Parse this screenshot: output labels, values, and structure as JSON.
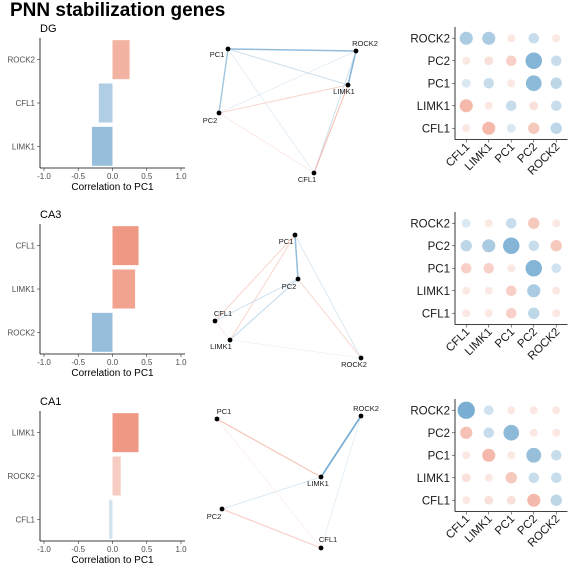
{
  "title": "PNN stabilization genes",
  "colors": {
    "positive": "#e8694a",
    "negative": "#4a90c2"
  },
  "chart_data": [
    {
      "type": "bar",
      "orientation": "horizontal",
      "panel": "DG",
      "categories": [
        "LIMK1",
        "CFL1",
        "ROCK2"
      ],
      "values": [
        -0.3,
        -0.2,
        0.25
      ],
      "xlabel": "Correlation to PC1",
      "xlim": [
        -1.0,
        1.0
      ],
      "xticks": [
        "-1.0",
        "-0.5",
        "0.0",
        "0.5",
        "1.0"
      ]
    },
    {
      "type": "network",
      "panel": "DG",
      "nodes": [
        "PC1",
        "ROCK2",
        "LIMK1",
        "CFL1",
        "PC2"
      ],
      "edges": [
        {
          "a": "PC1",
          "b": "PC2",
          "r": -0.4
        },
        {
          "a": "PC1",
          "b": "ROCK2",
          "r": -0.45
        },
        {
          "a": "PC1",
          "b": "LIMK1",
          "r": -0.2
        },
        {
          "a": "PC1",
          "b": "CFL1",
          "r": -0.1
        },
        {
          "a": "PC2",
          "b": "LIMK1",
          "r": 0.2
        },
        {
          "a": "PC2",
          "b": "CFL1",
          "r": 0.1
        },
        {
          "a": "PC2",
          "b": "ROCK2",
          "r": -0.1
        },
        {
          "a": "ROCK2",
          "b": "LIMK1",
          "r": -0.5
        },
        {
          "a": "ROCK2",
          "b": "CFL1",
          "r": -0.2
        },
        {
          "a": "LIMK1",
          "b": "CFL1",
          "r": 0.3
        }
      ]
    },
    {
      "type": "correlation_matrix",
      "panel": "DG",
      "rows": [
        "ROCK2",
        "PC2",
        "PC1",
        "LIMK1",
        "CFL1"
      ],
      "cols": [
        "CFL1",
        "LIMK1",
        "PC1",
        "PC2",
        "ROCK2"
      ],
      "values": [
        [
          -0.3,
          -0.3,
          0.0,
          -0.15,
          0.0
        ],
        [
          0.0,
          0.05,
          0.15,
          -0.5,
          -0.15
        ],
        [
          -0.05,
          -0.15,
          0.0,
          -0.45,
          -0.2
        ],
        [
          0.3,
          0.0,
          -0.15,
          0.05,
          -0.15
        ],
        [
          0.0,
          0.3,
          -0.05,
          0.2,
          -0.2
        ]
      ]
    },
    {
      "type": "bar",
      "orientation": "horizontal",
      "panel": "CA3",
      "categories": [
        "ROCK2",
        "LIMK1",
        "CFL1"
      ],
      "values": [
        -0.3,
        0.33,
        0.38
      ],
      "xlabel": "Correlation to PC1",
      "xlim": [
        -1.0,
        1.0
      ],
      "xticks": [
        "-1.0",
        "-0.5",
        "0.0",
        "0.5",
        "1.0"
      ]
    },
    {
      "type": "network",
      "panel": "CA3",
      "nodes": [
        "PC1",
        "PC2",
        "CFL1",
        "LIMK1",
        "ROCK2"
      ],
      "edges": [
        {
          "a": "PC1",
          "b": "PC2",
          "r": -0.45
        },
        {
          "a": "PC1",
          "b": "LIMK1",
          "r": 0.2
        },
        {
          "a": "PC1",
          "b": "CFL1",
          "r": 0.2
        },
        {
          "a": "PC1",
          "b": "ROCK2",
          "r": -0.15
        },
        {
          "a": "PC2",
          "b": "LIMK1",
          "r": -0.25
        },
        {
          "a": "PC2",
          "b": "CFL1",
          "r": -0.2
        },
        {
          "a": "PC2",
          "b": "ROCK2",
          "r": 0.2
        },
        {
          "a": "LIMK1",
          "b": "CFL1",
          "r": 0.1
        },
        {
          "a": "LIMK1",
          "b": "ROCK2",
          "r": -0.05
        }
      ]
    },
    {
      "type": "correlation_matrix",
      "panel": "CA3",
      "rows": [
        "ROCK2",
        "PC2",
        "PC1",
        "LIMK1",
        "CFL1"
      ],
      "cols": [
        "CFL1",
        "LIMK1",
        "PC1",
        "PC2",
        "ROCK2"
      ],
      "values": [
        [
          -0.05,
          0.0,
          -0.15,
          0.2,
          0.0
        ],
        [
          -0.2,
          -0.3,
          -0.5,
          -0.15,
          0.2
        ],
        [
          0.15,
          0.15,
          0.0,
          -0.5,
          -0.1
        ],
        [
          0.0,
          0.0,
          0.15,
          -0.3,
          0.0
        ],
        [
          0.0,
          0.0,
          0.15,
          -0.2,
          0.0
        ]
      ]
    },
    {
      "type": "bar",
      "orientation": "horizontal",
      "panel": "CA1",
      "categories": [
        "CFL1",
        "ROCK2",
        "LIMK1"
      ],
      "values": [
        -0.05,
        0.12,
        0.38
      ],
      "xlabel": "Correlation to PC1",
      "xlim": [
        -1.0,
        1.0
      ],
      "xticks": [
        "-1.0",
        "-0.5",
        "0.0",
        "0.5",
        "1.0"
      ]
    },
    {
      "type": "network",
      "panel": "CA1",
      "nodes": [
        "PC1",
        "ROCK2",
        "LIMK1",
        "PC2",
        "CFL1"
      ],
      "edges": [
        {
          "a": "PC1",
          "b": "LIMK1",
          "r": 0.3
        },
        {
          "a": "PC2",
          "b": "LIMK1",
          "r": -0.15
        },
        {
          "a": "PC2",
          "b": "CFL1",
          "r": 0.25
        },
        {
          "a": "ROCK2",
          "b": "LIMK1",
          "r": -0.55
        },
        {
          "a": "ROCK2",
          "b": "CFL1",
          "r": -0.1
        },
        {
          "a": "PC1",
          "b": "CFL1",
          "r": 0.05
        }
      ]
    },
    {
      "type": "correlation_matrix",
      "panel": "CA1",
      "rows": [
        "ROCK2",
        "PC2",
        "PC1",
        "LIMK1",
        "CFL1"
      ],
      "cols": [
        "CFL1",
        "LIMK1",
        "PC1",
        "PC2",
        "ROCK2"
      ],
      "values": [
        [
          -0.55,
          -0.1,
          0.0,
          0.0,
          0.0
        ],
        [
          0.25,
          -0.15,
          -0.45,
          0.0,
          0.0
        ],
        [
          0.0,
          0.3,
          0.0,
          -0.4,
          -0.15
        ],
        [
          0.05,
          0.0,
          0.2,
          -0.15,
          -0.15
        ],
        [
          0.0,
          0.05,
          0.05,
          0.3,
          -0.2
        ]
      ]
    }
  ]
}
